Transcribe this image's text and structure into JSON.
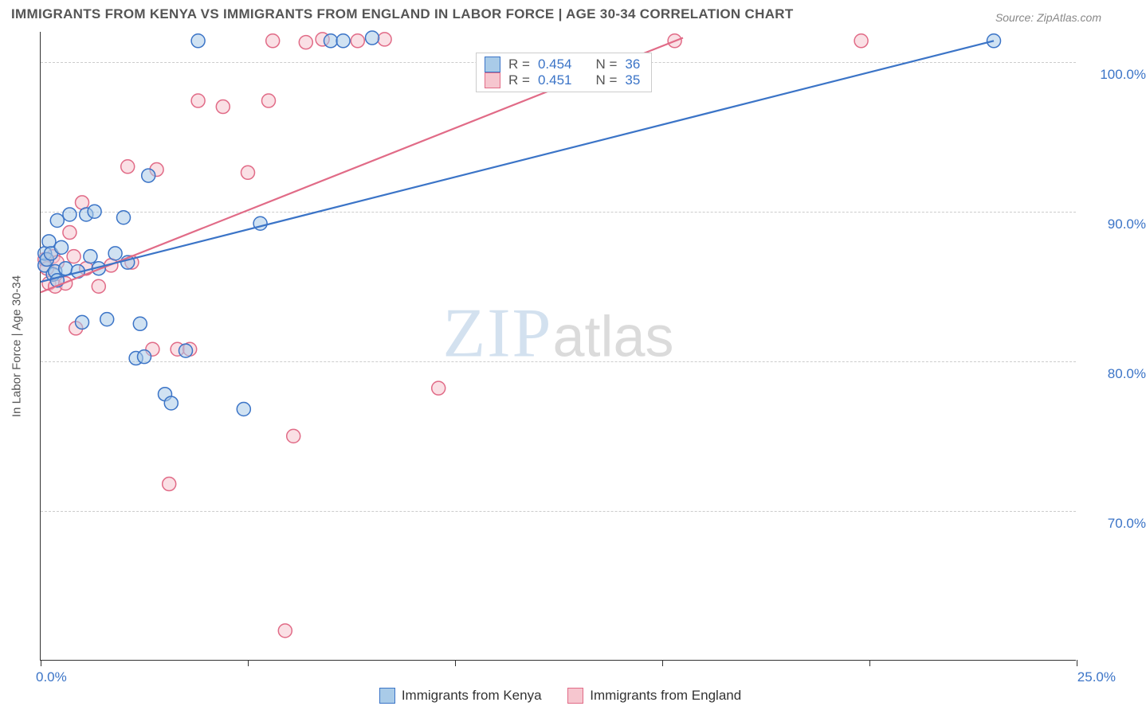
{
  "title": "IMMIGRANTS FROM KENYA VS IMMIGRANTS FROM ENGLAND IN LABOR FORCE | AGE 30-34 CORRELATION CHART",
  "source": "Source: ZipAtlas.com",
  "watermark_main": "ZIP",
  "watermark_tail": "atlas",
  "y_axis_label": "In Labor Force | Age 30-34",
  "colors": {
    "series_a_fill": "#a9cbe8",
    "series_a_stroke": "#3b74c7",
    "series_b_fill": "#f6c6cf",
    "series_b_stroke": "#e16b87",
    "axis_text": "#3b74c7",
    "grid": "#cccccc"
  },
  "chart": {
    "type": "scatter-with-regression",
    "xlim": [
      0,
      25
    ],
    "ylim": [
      60,
      102
    ],
    "y_ticks": [
      70,
      80,
      90,
      100
    ],
    "y_tick_labels": [
      "70.0%",
      "80.0%",
      "90.0%",
      "100.0%"
    ],
    "x_ticks": [
      0,
      5,
      10,
      15,
      20,
      25
    ],
    "x_tick_labels": {
      "0": "0.0%",
      "25": "25.0%"
    },
    "marker_radius": 8.5,
    "marker_fill_opacity": 0.55,
    "line_width": 2.2
  },
  "series_a": {
    "label": "Immigrants from Kenya",
    "r_value": "0.454",
    "n_value": "36",
    "regression": {
      "x1": 0,
      "y1": 85.3,
      "x2": 23,
      "y2": 101.4
    },
    "points": [
      [
        0.1,
        86.4
      ],
      [
        0.1,
        87.2
      ],
      [
        0.15,
        86.8
      ],
      [
        0.2,
        88.0
      ],
      [
        0.25,
        87.2
      ],
      [
        0.3,
        85.8
      ],
      [
        0.35,
        86.0
      ],
      [
        0.4,
        89.4
      ],
      [
        0.4,
        85.4
      ],
      [
        0.5,
        87.6
      ],
      [
        0.6,
        86.2
      ],
      [
        0.7,
        89.8
      ],
      [
        0.9,
        86.0
      ],
      [
        1.0,
        82.6
      ],
      [
        1.1,
        89.8
      ],
      [
        1.2,
        87.0
      ],
      [
        1.3,
        90.0
      ],
      [
        1.4,
        86.2
      ],
      [
        1.6,
        82.8
      ],
      [
        1.8,
        87.2
      ],
      [
        2.0,
        89.6
      ],
      [
        2.1,
        86.6
      ],
      [
        2.3,
        80.2
      ],
      [
        2.4,
        82.5
      ],
      [
        2.5,
        80.3
      ],
      [
        2.6,
        92.4
      ],
      [
        3.0,
        77.8
      ],
      [
        3.15,
        77.2
      ],
      [
        3.5,
        80.7
      ],
      [
        3.8,
        101.4
      ],
      [
        4.9,
        76.8
      ],
      [
        5.3,
        89.2
      ],
      [
        7.0,
        101.4
      ],
      [
        7.3,
        101.4
      ],
      [
        8.0,
        101.6
      ],
      [
        23.0,
        101.4
      ]
    ]
  },
  "series_b": {
    "label": "Immigrants from England",
    "r_value": "0.451",
    "n_value": "35",
    "regression": {
      "x1": 0,
      "y1": 84.6,
      "x2": 15.5,
      "y2": 101.6
    },
    "points": [
      [
        0.1,
        86.8
      ],
      [
        0.15,
        86.2
      ],
      [
        0.2,
        85.2
      ],
      [
        0.3,
        87.0
      ],
      [
        0.35,
        85.0
      ],
      [
        0.4,
        86.6
      ],
      [
        0.6,
        85.2
      ],
      [
        0.7,
        88.6
      ],
      [
        0.8,
        87.0
      ],
      [
        0.85,
        82.2
      ],
      [
        1.0,
        90.6
      ],
      [
        1.1,
        86.2
      ],
      [
        1.4,
        85.0
      ],
      [
        1.7,
        86.4
      ],
      [
        2.1,
        93.0
      ],
      [
        2.2,
        86.6
      ],
      [
        2.7,
        80.8
      ],
      [
        2.8,
        92.8
      ],
      [
        3.1,
        71.8
      ],
      [
        3.3,
        80.8
      ],
      [
        3.6,
        80.8
      ],
      [
        3.8,
        97.4
      ],
      [
        4.4,
        97.0
      ],
      [
        5.0,
        92.6
      ],
      [
        5.5,
        97.4
      ],
      [
        5.6,
        101.4
      ],
      [
        6.1,
        75.0
      ],
      [
        6.4,
        101.3
      ],
      [
        6.8,
        101.5
      ],
      [
        7.65,
        101.4
      ],
      [
        8.3,
        101.5
      ],
      [
        9.6,
        78.2
      ],
      [
        15.3,
        101.4
      ],
      [
        19.8,
        101.4
      ],
      [
        5.9,
        62.0
      ]
    ]
  },
  "legend_stats_labels": {
    "r": "R =",
    "n": "N ="
  }
}
